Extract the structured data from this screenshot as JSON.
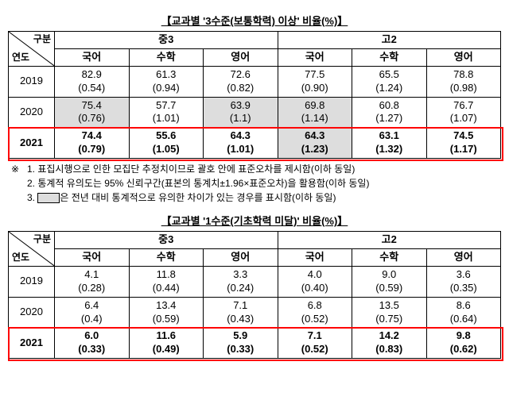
{
  "table1": {
    "title": "【교과별 '3수준(보통학력) 이상' 비율(%)】",
    "diag_top": "구분",
    "diag_bot": "연도",
    "group_headers": [
      "중3",
      "고2"
    ],
    "sub_headers": [
      "국어",
      "수학",
      "영어",
      "국어",
      "수학",
      "영어"
    ],
    "rows": [
      {
        "year": "2019",
        "cells": [
          {
            "v": "82.9",
            "e": "(0.54)"
          },
          {
            "v": "61.3",
            "e": "(0.94)"
          },
          {
            "v": "72.6",
            "e": "(0.82)"
          },
          {
            "v": "77.5",
            "e": "(0.90)"
          },
          {
            "v": "65.5",
            "e": "(1.24)"
          },
          {
            "v": "78.8",
            "e": "(0.98)"
          }
        ]
      },
      {
        "year": "2020",
        "cells": [
          {
            "v": "75.4",
            "e": "(0.76)",
            "shaded": true
          },
          {
            "v": "57.7",
            "e": "(1.01)"
          },
          {
            "v": "63.9",
            "e": "(1.1)",
            "shaded": true
          },
          {
            "v": "69.8",
            "e": "(1.14)",
            "shaded": true
          },
          {
            "v": "60.8",
            "e": "(1.27)"
          },
          {
            "v": "76.7",
            "e": "(1.07)"
          }
        ]
      },
      {
        "year": "2021",
        "highlight": true,
        "cells": [
          {
            "v": "74.4",
            "e": "(0.79)"
          },
          {
            "v": "55.6",
            "e": "(1.05)"
          },
          {
            "v": "64.3",
            "e": "(1.01)"
          },
          {
            "v": "64.3",
            "e": "(1.23)",
            "shaded": true
          },
          {
            "v": "63.1",
            "e": "(1.32)"
          },
          {
            "v": "74.5",
            "e": "(1.17)"
          }
        ]
      }
    ]
  },
  "notes": {
    "prefix": "※",
    "items": [
      "표집시행으로 인한 모집단 추정치이므로 괄호 안에 표준오차를 제시함(이하 동일)",
      "통계적 유의도는 95% 신뢰구간(표본의 통계치±1.96×표준오차)을 활용함(이하 동일)",
      "은 전년 대비 통계적으로 유의한 차이가 있는 경우를 표시함(이하 동일)"
    ]
  },
  "table2": {
    "title": "【교과별 '1수준(기초학력 미달)' 비율(%)】",
    "diag_top": "구분",
    "diag_bot": "연도",
    "group_headers": [
      "중3",
      "고2"
    ],
    "sub_headers": [
      "국어",
      "수학",
      "영어",
      "국어",
      "수학",
      "영어"
    ],
    "rows": [
      {
        "year": "2019",
        "cells": [
          {
            "v": "4.1",
            "e": "(0.28)"
          },
          {
            "v": "11.8",
            "e": "(0.44)"
          },
          {
            "v": "3.3",
            "e": "(0.24)"
          },
          {
            "v": "4.0",
            "e": "(0.40)"
          },
          {
            "v": "9.0",
            "e": "(0.59)"
          },
          {
            "v": "3.6",
            "e": "(0.35)"
          }
        ]
      },
      {
        "year": "2020",
        "cells": [
          {
            "v": "6.4",
            "e": "(0.4)"
          },
          {
            "v": "13.4",
            "e": "(0.59)"
          },
          {
            "v": "7.1",
            "e": "(0.43)"
          },
          {
            "v": "6.8",
            "e": "(0.52)"
          },
          {
            "v": "13.5",
            "e": "(0.75)"
          },
          {
            "v": "8.6",
            "e": "(0.64)"
          }
        ]
      },
      {
        "year": "2021",
        "highlight": true,
        "cells": [
          {
            "v": "6.0",
            "e": "(0.33)"
          },
          {
            "v": "11.6",
            "e": "(0.49)"
          },
          {
            "v": "5.9",
            "e": "(0.33)"
          },
          {
            "v": "7.1",
            "e": "(0.52)"
          },
          {
            "v": "14.2",
            "e": "(0.83)"
          },
          {
            "v": "9.8",
            "e": "(0.62)"
          }
        ]
      }
    ]
  },
  "style": {
    "highlight_border": "#ff0000",
    "shade_bg": "#dddddd",
    "border_color": "#000000",
    "font_family": "Malgun Gothic"
  }
}
